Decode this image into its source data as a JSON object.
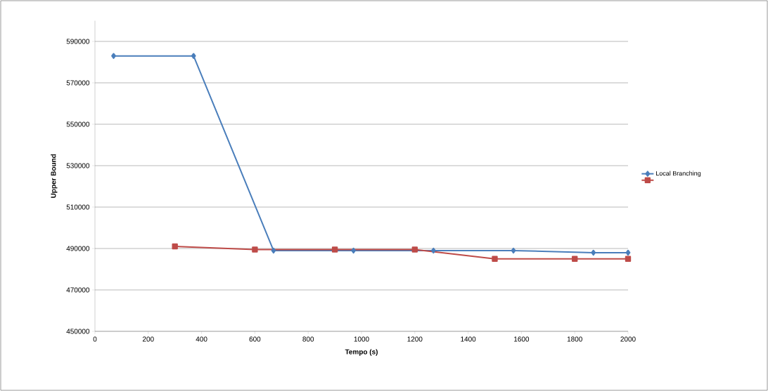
{
  "chart_data": {
    "type": "line",
    "xlabel": "Tempo (s)",
    "ylabel": "Upper Bound",
    "series": [
      {
        "name": "Local Branching",
        "color": "#4a7ebb",
        "marker": "diamond",
        "x": [
          70,
          370,
          670,
          970,
          1270,
          1570,
          1870,
          2000
        ],
        "values": [
          583000,
          583000,
          489000,
          489000,
          489000,
          489000,
          488000,
          488000
        ]
      },
      {
        "color": "#be4b48",
        "marker": "square",
        "x": [
          300,
          600,
          900,
          1200,
          1500,
          1800,
          2000
        ],
        "values": [
          491000,
          489500,
          489500,
          489500,
          485000,
          485000,
          485000
        ]
      }
    ],
    "xlim": [
      0,
      2000
    ],
    "xticks": [
      0,
      200,
      400,
      600,
      800,
      1000,
      1200,
      1400,
      1600,
      1800,
      2000
    ],
    "ylim": [
      450000,
      600000
    ],
    "yticks": [
      450000,
      470000,
      490000,
      510000,
      530000,
      550000,
      570000,
      590000
    ],
    "grid": "y",
    "legend": "right",
    "line_style": "solid"
  }
}
